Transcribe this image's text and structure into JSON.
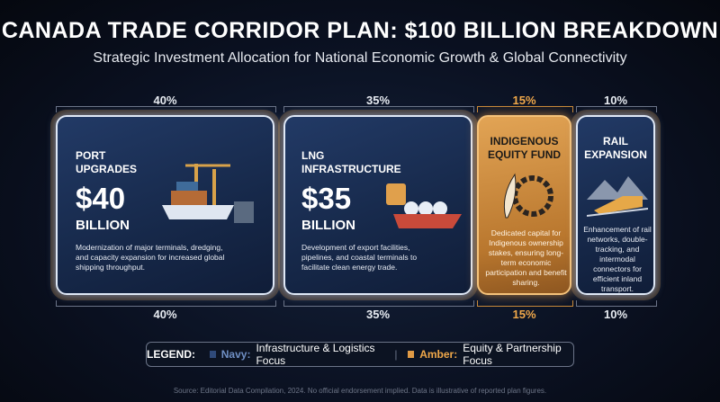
{
  "header": {
    "title": "CANADA TRADE CORRIDOR PLAN: $100 BILLION BREAKDOWN",
    "subtitle": "Strategic Investment Allocation for National Economic Growth & Global Connectivity"
  },
  "panels": [
    {
      "share": "40%",
      "name": "PORT\nUPGRADES",
      "amount": "$40",
      "unit": "BILLION",
      "description": "Modernization of major terminals, dredging, and capacity expansion for increased global shipping throughput."
    },
    {
      "share": "35%",
      "name": "LNG\nINFRASTRUCTURE",
      "amount": "$35",
      "unit": "BILLION",
      "description": "Development of export facilities, pipelines, and coastal terminals to facilitate clean energy trade."
    },
    {
      "share": "15%",
      "name": "INDIGENOUS\nEQUITY FUND",
      "description": "Dedicated capital for Indigenous ownership stakes, ensuring long-term economic participation and benefit sharing."
    },
    {
      "share": "10%",
      "name": "RAIL\nEXPANSION",
      "description": "Enhancement of rail networks, double-tracking, and intermodal connectors for efficient inland transport."
    }
  ],
  "legend": {
    "label": "LEGEND:",
    "items": [
      {
        "name": "Navy:",
        "text": "Infrastructure & Logistics Focus"
      },
      {
        "name": "Amber:",
        "text": "Equity & Partnership Focus"
      }
    ]
  },
  "source": "Source: Editorial Data Compilation, 2024. No official endorsement implied. Data is illustrative of reported plan figures."
}
